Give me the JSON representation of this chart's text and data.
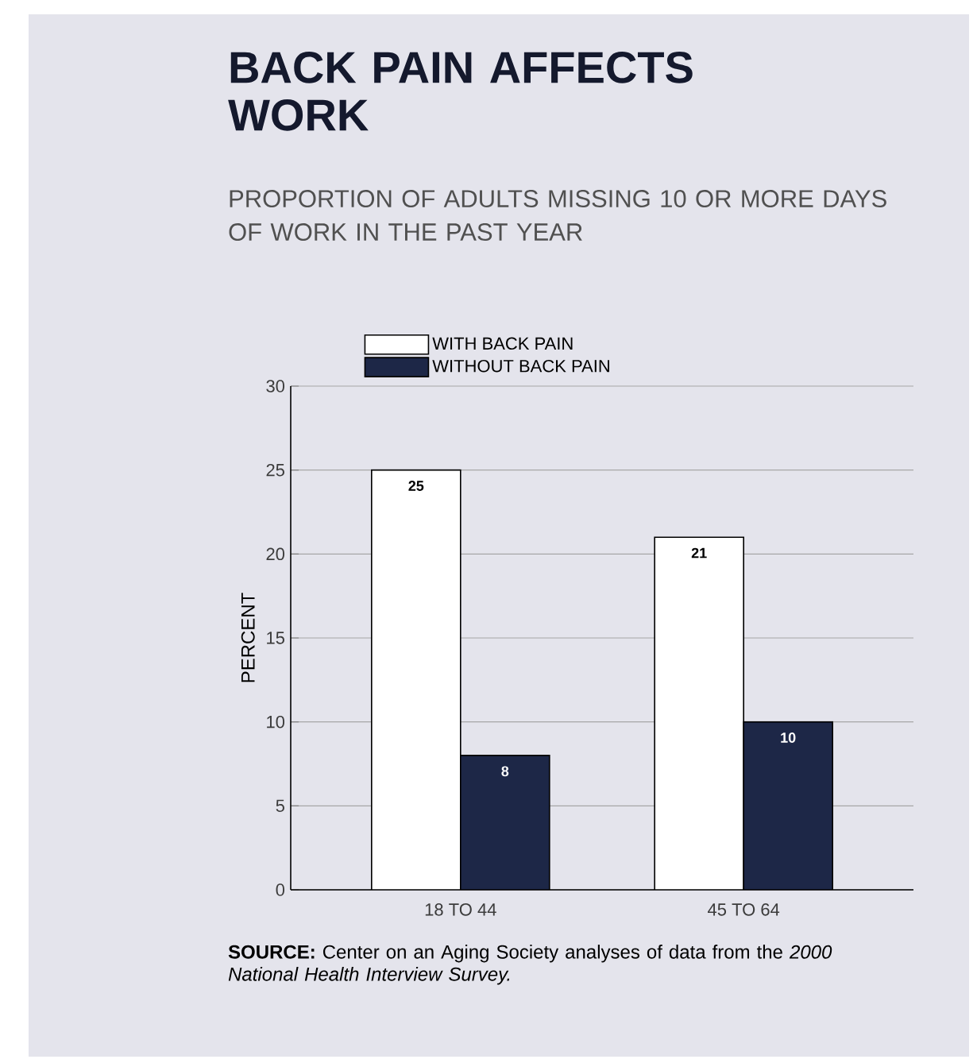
{
  "chart_data": {
    "type": "bar",
    "title": "BACK PAIN AFFECTS WORK",
    "subtitle": "PROPORTION OF ADULTS MISSING 10 OR MORE DAYS OF WORK IN THE PAST YEAR",
    "ylabel": "PERCENT",
    "categories": [
      "18 TO 44",
      "45 TO 64"
    ],
    "series": [
      {
        "name": "WITH BACK PAIN",
        "color": "#ffffff",
        "values": [
          25,
          21
        ]
      },
      {
        "name": "WITHOUT BACK PAIN",
        "color": "#1d2747",
        "values": [
          8,
          10
        ]
      }
    ],
    "ylim": [
      0,
      30
    ],
    "yticks": [
      0,
      5,
      10,
      15,
      20,
      25,
      30
    ],
    "grid": "y",
    "legend": "top",
    "data_labels": true,
    "annotations": [
      "**SOURCE:** Center on an Aging Society analyses of data from the *2000 National Health Interview Survey.*"
    ]
  }
}
